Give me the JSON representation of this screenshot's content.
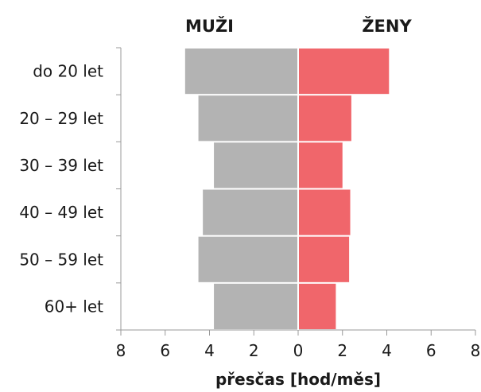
{
  "chart_data": {
    "type": "bar",
    "orientation": "horizontal",
    "layout": "population-pyramid",
    "categories": [
      "do 20 let",
      "20 – 29 let",
      "30 – 39 let",
      "40 – 49 let",
      "50 – 59 let",
      "60+ let"
    ],
    "series": [
      {
        "name": "MUŽI",
        "side": "left",
        "color": "#b3b3b3",
        "values": [
          5.1,
          4.5,
          3.8,
          4.3,
          4.5,
          3.8
        ]
      },
      {
        "name": "ŽENY",
        "side": "right",
        "color": "#f0666b",
        "values": [
          4.1,
          2.4,
          2.0,
          2.35,
          2.3,
          1.7
        ]
      }
    ],
    "xlabel": "přesčas [hod/měs]",
    "ylabel": "",
    "xlim": [
      -8,
      8
    ],
    "xticks": [
      -8,
      -6,
      -4,
      -2,
      0,
      2,
      4,
      6,
      8
    ],
    "xtick_labels": [
      "8",
      "6",
      "4",
      "2",
      "0",
      "2",
      "4",
      "6",
      "8"
    ],
    "grid": false,
    "legend": "series names as headers above each side"
  }
}
